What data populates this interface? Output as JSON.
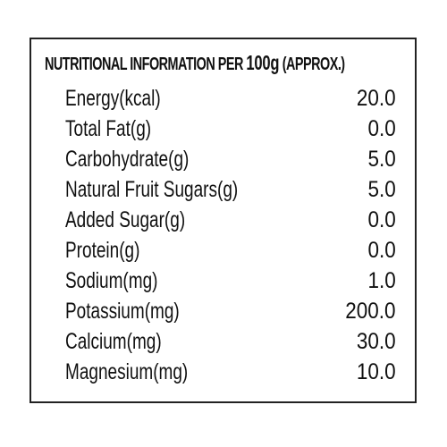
{
  "panel": {
    "heading_main": "NUTRITIONAL INFORMATION PER ",
    "heading_amount": "100g",
    "heading_suffix": " (APPROX.)"
  },
  "rows": [
    {
      "label": "Energy(kcal)",
      "value": "20.0"
    },
    {
      "label": "Total Fat(g)",
      "value": "0.0"
    },
    {
      "label": "Carbohydrate(g)",
      "value": "5.0"
    },
    {
      "label": "Natural Fruit Sugars(g)",
      "value": "5.0"
    },
    {
      "label": "Added Sugar(g)",
      "value": "0.0"
    },
    {
      "label": "Protein(g)",
      "value": "0.0"
    },
    {
      "label": "Sodium(mg)",
      "value": "1.0"
    },
    {
      "label": "Potassium(mg)",
      "value": "200.0"
    },
    {
      "label": "Calcium(mg)",
      "value": "30.0"
    },
    {
      "label": "Magnesium(mg)",
      "value": "10.0"
    }
  ]
}
